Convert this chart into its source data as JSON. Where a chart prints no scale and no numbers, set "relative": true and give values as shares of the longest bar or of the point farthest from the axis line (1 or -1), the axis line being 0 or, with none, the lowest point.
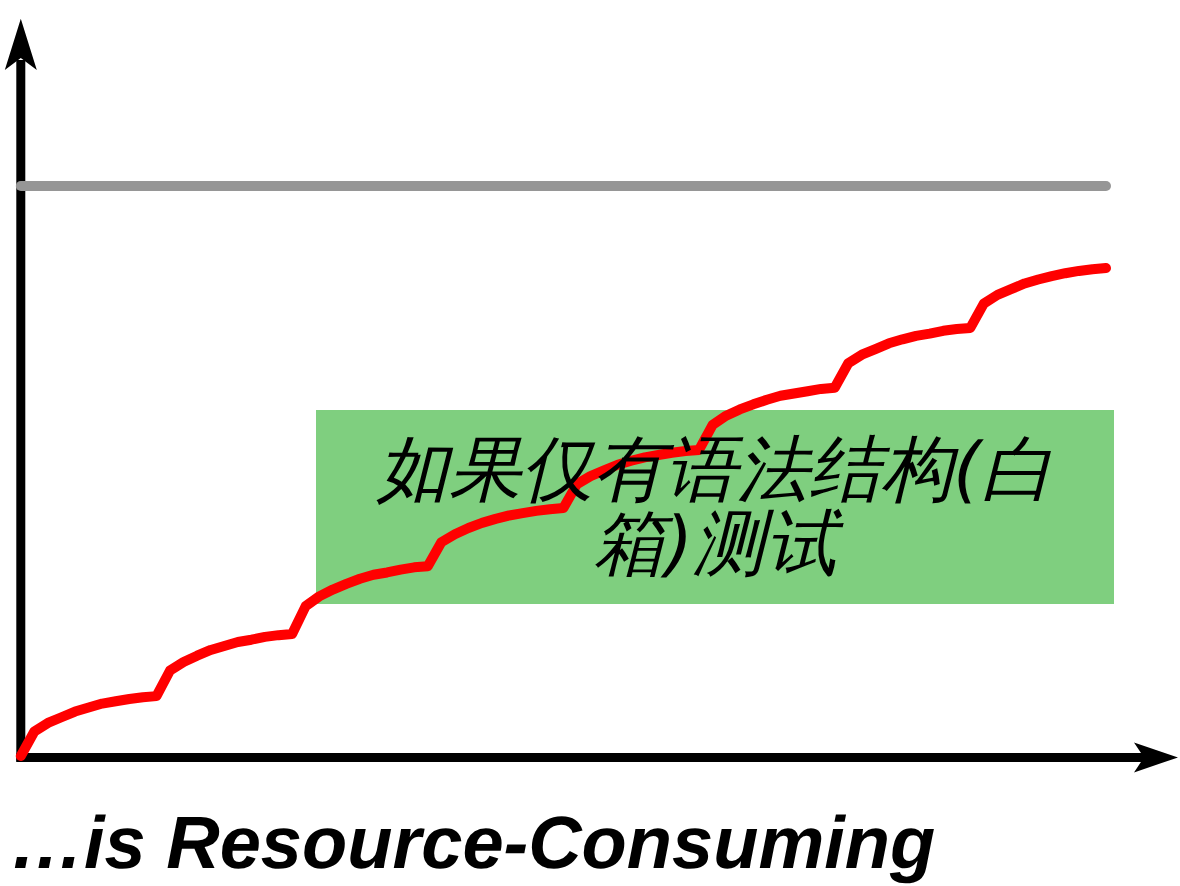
{
  "chart_data": {
    "type": "line",
    "relative": true,
    "categories": [
      null,
      null,
      null,
      null,
      null,
      null,
      null,
      null,
      null,
      null,
      null,
      null,
      null,
      null,
      null,
      null,
      null,
      null,
      null,
      null,
      null,
      null,
      null,
      null,
      null,
      null,
      null,
      null,
      null,
      null,
      null,
      null,
      null,
      null,
      null,
      null,
      null,
      null,
      null,
      null,
      null,
      null,
      null,
      null,
      null,
      null,
      null,
      null,
      null,
      null,
      null,
      null,
      null,
      null,
      null,
      null,
      null,
      null,
      null,
      null,
      null,
      null,
      null,
      null,
      null,
      null,
      null,
      null,
      null,
      null,
      null,
      null,
      null,
      null,
      null,
      null,
      null,
      null,
      null,
      null,
      null
    ],
    "series": [
      {
        "color": "#ff0000",
        "values": [
          0,
          0.043,
          0.058,
          0.068,
          0.078,
          0.085,
          0.092,
          0.096,
          0.1,
          0.103,
          0.105,
          0.15,
          0.165,
          0.176,
          0.186,
          0.193,
          0.2,
          0.204,
          0.209,
          0.212,
          0.214,
          0.263,
          0.28,
          0.292,
          0.302,
          0.311,
          0.318,
          0.322,
          0.327,
          0.331,
          0.333,
          0.375,
          0.389,
          0.4,
          0.409,
          0.416,
          0.422,
          0.426,
          0.43,
          0.433,
          0.435,
          0.477,
          0.491,
          0.501,
          0.511,
          0.518,
          0.524,
          0.528,
          0.532,
          0.535,
          0.537,
          0.581,
          0.597,
          0.608,
          0.617,
          0.625,
          0.632,
          0.636,
          0.64,
          0.644,
          0.646,
          0.689,
          0.704,
          0.714,
          0.724,
          0.731,
          0.737,
          0.741,
          0.746,
          0.749,
          0.751,
          0.794,
          0.809,
          0.819,
          0.829,
          0.836,
          0.842,
          0.847,
          0.851,
          0.854,
          0.856
        ]
      },
      {
        "color": "#969696",
        "values": [
          1,
          1,
          1,
          1,
          1,
          1,
          1,
          1,
          1,
          1,
          1,
          1,
          1,
          1,
          1,
          1,
          1,
          1,
          1,
          1,
          1,
          1,
          1,
          1,
          1,
          1,
          1,
          1,
          1,
          1,
          1,
          1,
          1,
          1,
          1,
          1,
          1,
          1,
          1,
          1,
          1,
          1,
          1,
          1,
          1,
          1,
          1,
          1,
          1,
          1,
          1,
          1,
          1,
          1,
          1,
          1,
          1,
          1,
          1,
          1,
          1,
          1,
          1,
          1,
          1,
          1,
          1,
          1,
          1,
          1,
          1,
          1,
          1,
          1,
          1,
          1,
          1,
          1,
          1,
          1,
          1
        ]
      }
    ],
    "annotations": [
      "如果仅有语法结构(白箱)测试",
      "…is Resource-Consuming"
    ]
  }
}
